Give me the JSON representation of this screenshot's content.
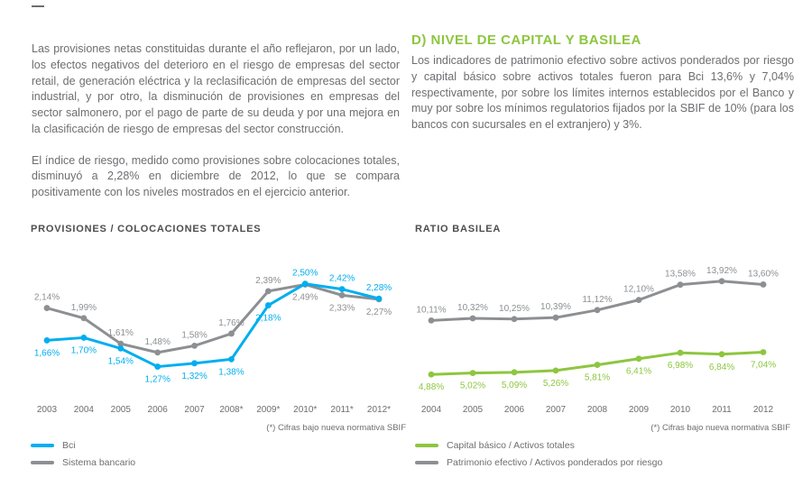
{
  "left_column": {
    "paragraph1": "Las provisiones netas constituidas durante el año reflejaron, por un lado, los efectos negativos del deterioro en el riesgo de empresas del sector retail, de generación eléctrica y la reclasificación de empresas del sector industrial, y por otro, la disminución de provisiones en empresas del sector salmonero, por el pago de parte de su deuda y por una mejora en la clasificación de riesgo de empresas del sector construcción.",
    "paragraph2": "El índice de riesgo, medido como provisiones sobre colocaciones totales, disminuyó a 2,28% en diciembre de 2012, lo que se compara positivamente con los niveles mostrados en el ejercicio anterior."
  },
  "right_column": {
    "heading": "D) NIVEL DE CAPITAL Y BASILEA",
    "paragraph": "Los indicadores de patrimonio efectivo sobre activos ponderados por riesgo y capital básico sobre activos totales fueron para Bci 13,6% y 7,04% respectivamente, por sobre los límites internos establecidos por el Banco y muy por sobre los mínimos regulatorios fijados por la SBIF de 10% (para los bancos con sucursales en el extranjero) y 3%."
  },
  "colors": {
    "accent_green": "#8dc63f",
    "bci_cyan": "#00aeef",
    "gray_line": "#8d8f92",
    "text_gray": "#6d6e71",
    "title_gray": "#4d4d4f"
  },
  "chart_data": [
    {
      "type": "line",
      "title": "PROVISIONES / COLOCACIONES TOTALES",
      "categories": [
        "2003",
        "2004",
        "2005",
        "2006",
        "2007",
        "2008*",
        "2009*",
        "2010*",
        "2011*",
        "2012*"
      ],
      "series": [
        {
          "name": "Bci",
          "color_key": "bci_cyan",
          "values": [
            1.66,
            1.7,
            1.54,
            1.27,
            1.32,
            1.38,
            2.18,
            2.5,
            2.42,
            2.28
          ],
          "labels": [
            "1,66%",
            "1,70%",
            "1,54%",
            "1,27%",
            "1,32%",
            "1,38%",
            "2,18%",
            "2,50%",
            "2,42%",
            "2,28%"
          ]
        },
        {
          "name": "Sistema bancario",
          "color_key": "gray_line",
          "values": [
            2.14,
            1.99,
            1.61,
            1.48,
            1.58,
            1.76,
            2.39,
            2.49,
            2.33,
            2.27
          ],
          "labels": [
            "2,14%",
            "1,99%",
            "1,61%",
            "1,48%",
            "1,58%",
            "1,76%",
            "2,39%",
            "2,49%",
            "2,33%",
            "2,27%"
          ]
        }
      ],
      "ylim": [
        1.05,
        2.75
      ],
      "legend_position": "bottom-left",
      "grid": false,
      "footnote": "(*) Cifras bajo nueva normativa SBIF"
    },
    {
      "type": "line",
      "title": "RATIO BASILEA",
      "categories": [
        "2004",
        "2005",
        "2006",
        "2007",
        "2008",
        "2009",
        "2010",
        "2011",
        "2012"
      ],
      "series": [
        {
          "name": "Capital básico / Activos totales",
          "color_key": "accent_green",
          "values": [
            4.88,
            5.02,
            5.09,
            5.26,
            5.81,
            6.41,
            6.98,
            6.84,
            7.04
          ],
          "labels": [
            "4,88%",
            "5,02%",
            "5,09%",
            "5,26%",
            "5,81%",
            "6,41%",
            "6,98%",
            "6,84%",
            "7,04%"
          ]
        },
        {
          "name": "Patrimonio efectivo / Activos ponderados por riesgo",
          "color_key": "gray_line",
          "values": [
            10.11,
            10.32,
            10.25,
            10.39,
            11.12,
            12.1,
            13.58,
            13.92,
            13.6
          ],
          "labels": [
            "10,11%",
            "10,32%",
            "10,25%",
            "10,39%",
            "11,12%",
            "12,10%",
            "13,58%",
            "13,92%",
            "13,60%"
          ]
        }
      ],
      "ylim": [
        4.2,
        15.3
      ],
      "legend_position": "bottom-left",
      "grid": false,
      "footnote": "(*) Cifras bajo nueva normativa SBIF"
    }
  ]
}
